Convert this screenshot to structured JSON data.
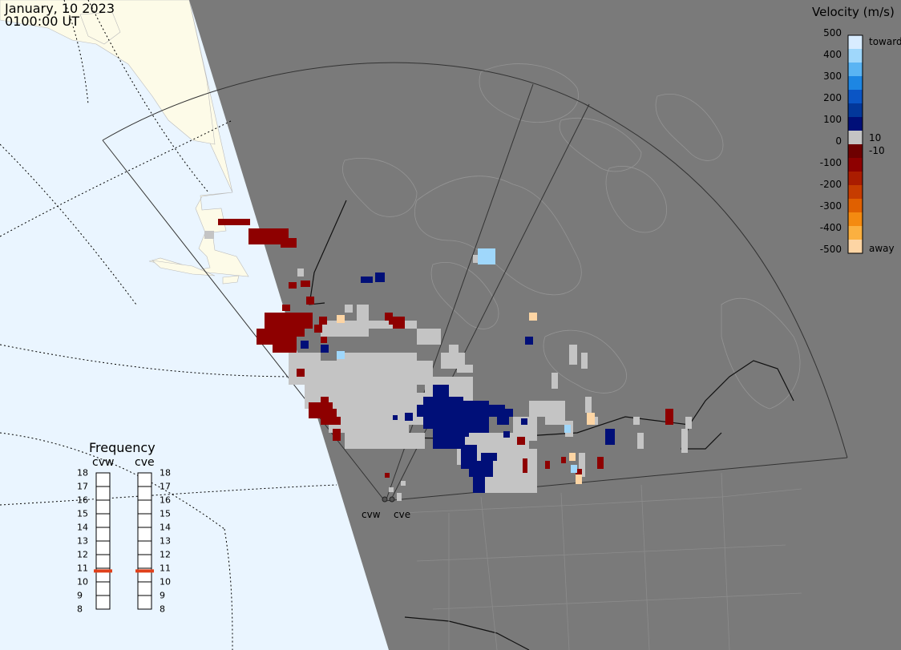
{
  "header": {
    "date": "January, 10 2023",
    "time": "0100:00 UT"
  },
  "colorbar": {
    "title": "Velocity (m/s)",
    "tick_labels": [
      "500",
      "400",
      "300",
      "200",
      "100",
      "0",
      "-100",
      "-200",
      "-300",
      "-400",
      "-500"
    ],
    "toward_label": "toward",
    "away_label": "away",
    "pos_threshold": "10",
    "neg_threshold": "-10",
    "colors": [
      "#d8ecff",
      "#9fd7fb",
      "#5ab4f3",
      "#1d86e3",
      "#0a55c5",
      "#02379a",
      "#000f78",
      "#c4c4c4",
      "#6e0000",
      "#8e0000",
      "#aa1c00",
      "#c63c00",
      "#e06000",
      "#f48a10",
      "#fbb040",
      "#fdd5a4"
    ]
  },
  "frequency": {
    "title": "Frequency",
    "radars": [
      "cvw",
      "cve"
    ],
    "ticks": [
      "18",
      "17",
      "16",
      "15",
      "14",
      "13",
      "12",
      "11",
      "10",
      "9",
      "8"
    ],
    "values_mhz": [
      10.8,
      10.8
    ]
  },
  "radar_sites": [
    "cvw",
    "cve"
  ],
  "map_colors": {
    "ocean": "#eaf5ff",
    "land_day": "#fdfbe8",
    "night": "#7a7a7a",
    "ground_scatter": "#c4c4c4"
  }
}
